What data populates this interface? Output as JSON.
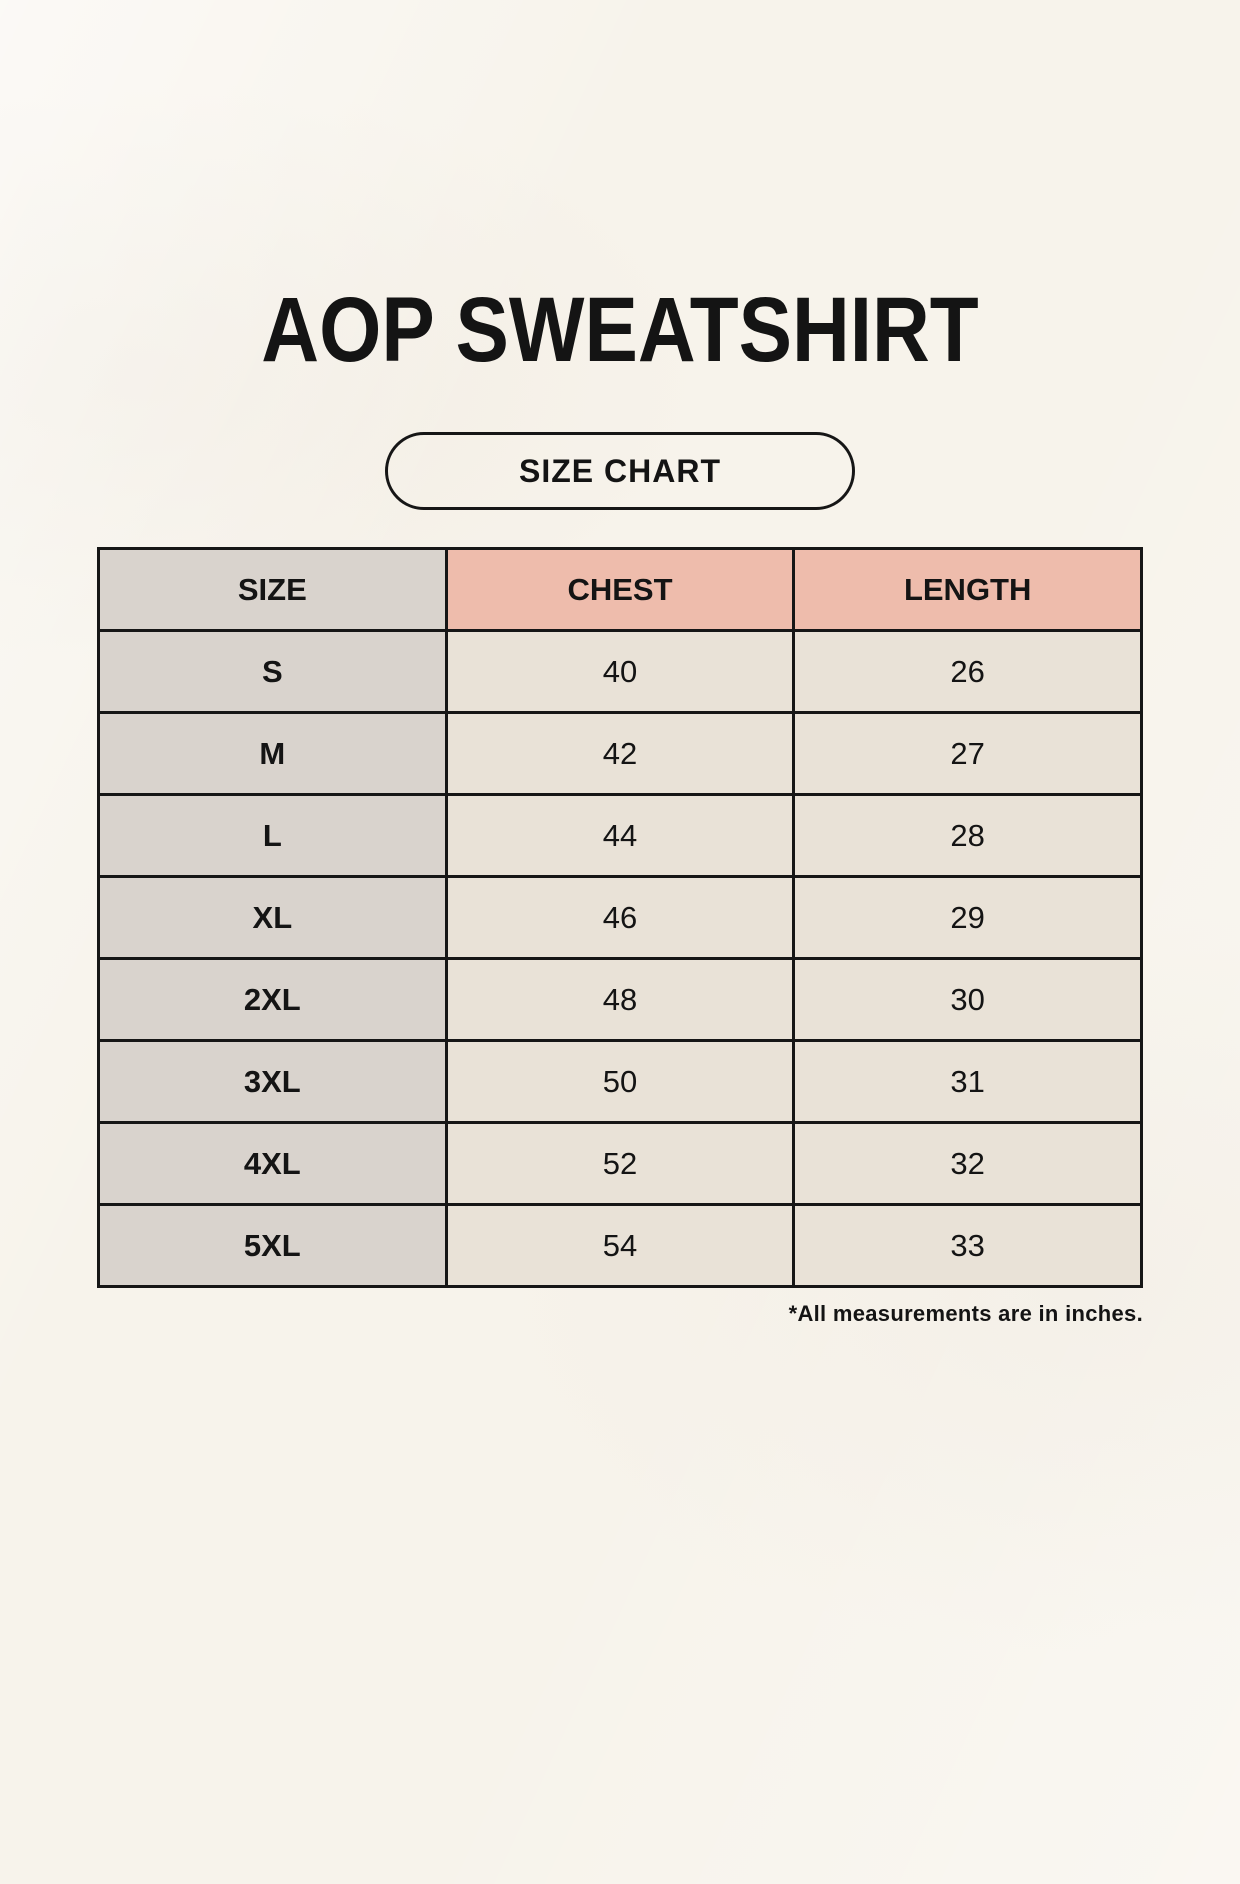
{
  "page": {
    "title": "AOP SWEATSHIRT",
    "badge_label": "SIZE CHART",
    "footnote": "*All measurements are in inches."
  },
  "table": {
    "columns": [
      "SIZE",
      "CHEST",
      "LENGTH"
    ],
    "rows": [
      [
        "S",
        "40",
        "26"
      ],
      [
        "M",
        "42",
        "27"
      ],
      [
        "L",
        "44",
        "28"
      ],
      [
        "XL",
        "46",
        "29"
      ],
      [
        "2XL",
        "48",
        "30"
      ],
      [
        "3XL",
        "50",
        "31"
      ],
      [
        "4XL",
        "52",
        "32"
      ],
      [
        "5XL",
        "54",
        "33"
      ]
    ]
  },
  "colors": {
    "background": "#f7f3eb",
    "header_accent": "#eebcac",
    "size_column": "#d9d3cd",
    "cell": "#e9e2d7",
    "border": "#161616",
    "text": "#141414"
  },
  "chart_data": {
    "type": "table",
    "title": "AOP SWEATSHIRT",
    "subtitle": "SIZE CHART",
    "columns": [
      "SIZE",
      "CHEST",
      "LENGTH"
    ],
    "rows": [
      [
        "S",
        40,
        26
      ],
      [
        "M",
        42,
        27
      ],
      [
        "L",
        44,
        28
      ],
      [
        "XL",
        46,
        29
      ],
      [
        "2XL",
        48,
        30
      ],
      [
        "3XL",
        50,
        31
      ],
      [
        "4XL",
        52,
        32
      ],
      [
        "5XL",
        54,
        33
      ]
    ],
    "note": "*All measurements are in inches.",
    "units": "inches"
  }
}
